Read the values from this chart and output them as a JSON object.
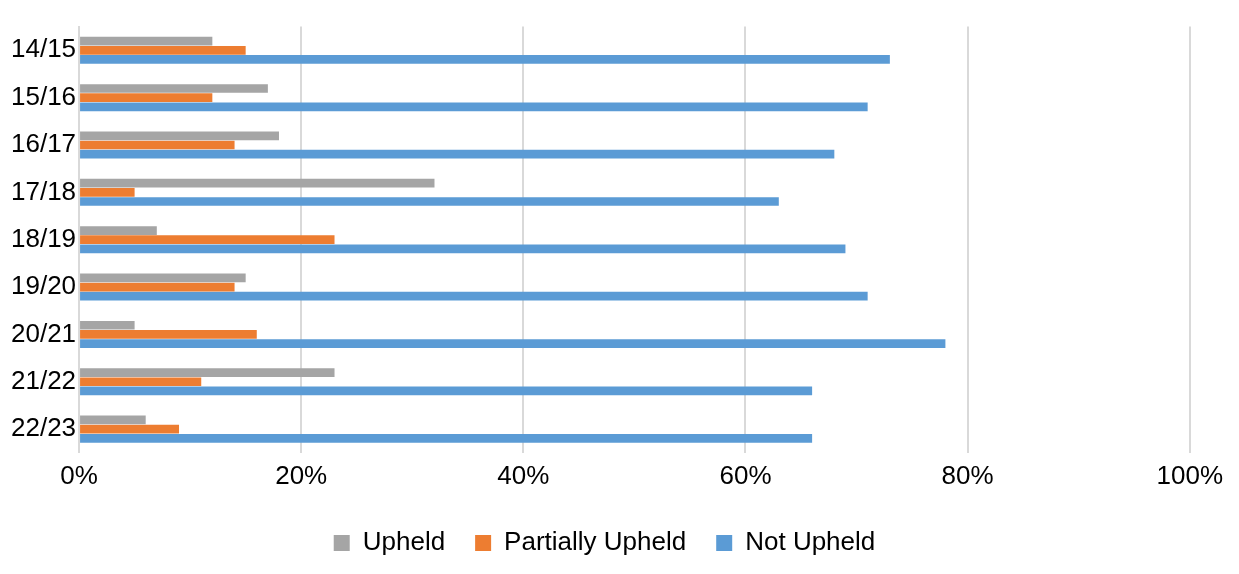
{
  "chart_data": {
    "type": "bar",
    "orientation": "horizontal",
    "categories": [
      "14/15",
      "15/16",
      "16/17",
      "17/18",
      "18/19",
      "19/20",
      "20/21",
      "21/22",
      "22/23"
    ],
    "series": [
      {
        "name": "Upheld",
        "color": "#a5a5a5",
        "values": [
          12,
          17,
          18,
          32,
          7,
          15,
          5,
          23,
          6
        ]
      },
      {
        "name": "Partially Upheld",
        "color": "#ed7d31",
        "values": [
          15,
          12,
          14,
          5,
          23,
          14,
          16,
          11,
          9
        ]
      },
      {
        "name": "Not Upheld",
        "color": "#5b9bd5",
        "values": [
          73,
          71,
          68,
          63,
          69,
          71,
          78,
          66,
          66
        ]
      }
    ],
    "xlim": [
      0,
      100
    ],
    "xticks": [
      {
        "value": 0,
        "label": "0%"
      },
      {
        "value": 20,
        "label": "20%"
      },
      {
        "value": 40,
        "label": "40%"
      },
      {
        "value": 60,
        "label": "60%"
      },
      {
        "value": 80,
        "label": "80%"
      },
      {
        "value": 100,
        "label": "100%"
      }
    ],
    "grid": "x",
    "legend": "bottom"
  }
}
